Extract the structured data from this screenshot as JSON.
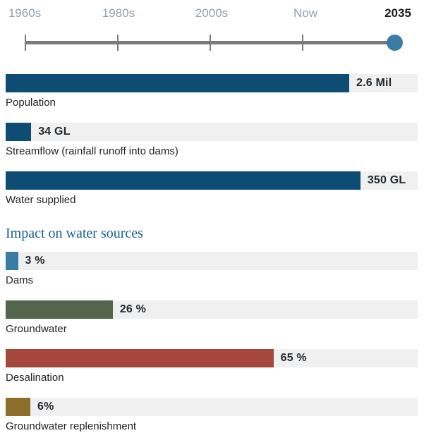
{
  "timeline": {
    "labels": [
      "1960s",
      "1980s",
      "2000s",
      "Now",
      "2035"
    ],
    "selected": "2035",
    "handle_color": "#3a7da4",
    "track_color": "#7b7b7b"
  },
  "chart_data": [
    {
      "type": "bar",
      "orientation": "horizontal",
      "title": "",
      "categories": [
        "Population",
        "Streamflow (rainfall runoff into dams)",
        "Water supplied"
      ],
      "values": [
        2.6,
        34,
        350
      ],
      "value_labels": [
        "2.6 Mil",
        "34 GL",
        "350 GL"
      ],
      "units": [
        "Mil",
        "GL",
        "GL"
      ],
      "fill_pct": [
        "83.4%",
        "6.2%",
        "86.1%"
      ],
      "colors": [
        "#0d4d73",
        "#0d4d73",
        "#0d4d73"
      ],
      "track_color": "#f0f0f0",
      "legend": "none",
      "grid": false
    },
    {
      "type": "bar",
      "orientation": "horizontal",
      "title": "Impact on water sources",
      "categories": [
        "Dams",
        "Groundwater",
        "Desalination",
        "Groundwater replenishment"
      ],
      "values": [
        3,
        26,
        65,
        6
      ],
      "value_labels": [
        "3 %",
        "26 %",
        "65 %",
        "6%"
      ],
      "xlim": [
        0,
        100
      ],
      "fill_pct": [
        "3%",
        "26%",
        "65%",
        "6%"
      ],
      "colors": [
        "#3a7da4",
        "#53654c",
        "#a4473d",
        "#8e6e2d"
      ],
      "track_color": "#f0f0f0",
      "legend": "none",
      "grid": false
    }
  ],
  "colors": {
    "heading_blue": "#16618e",
    "dark_blue_bar": "#0d4d73",
    "timeline_label_gray": "#929fae",
    "selected_label_dark": "#1d1d1d"
  }
}
